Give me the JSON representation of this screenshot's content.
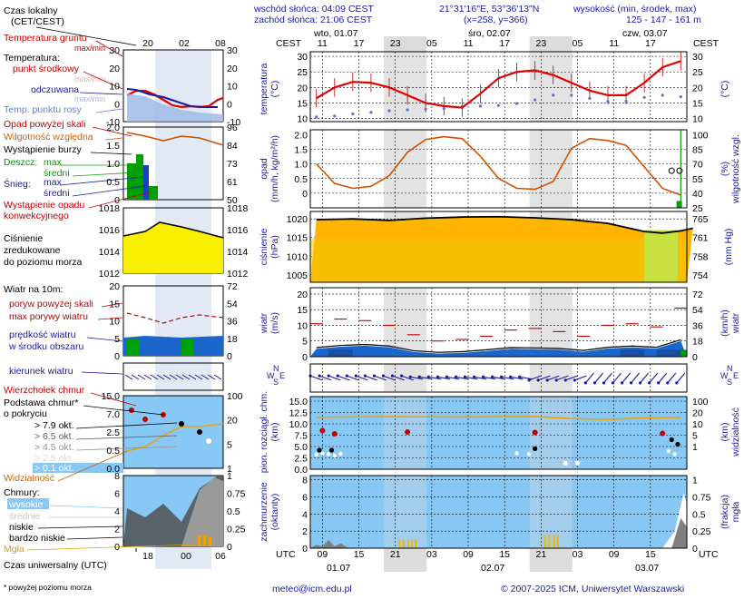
{
  "header": {
    "sunrise": "wschód słońca: 04:09 CEST",
    "sunset": "zachód słońca: 21:06 CEST",
    "coords": "21°31'16\"E, 53°36'13\"N",
    "grid": "(x=258, y=366)",
    "elevation_label": "wysokość (min, środek, max)",
    "elevation_values": "125 - 147 - 161 m"
  },
  "legend": {
    "local_time": "Czas lokalny",
    "local_time_zone": "(CET/CEST)",
    "ground_temp": "Temperatura gruntu",
    "ground_temp_sub": "max/min",
    "temperature": "Temperatura:",
    "temp_mid": "punkt środkowy",
    "temp_maxmin": "max/min",
    "felt": "odczuwana",
    "felt_maxmin": "max/min",
    "dew_point": "Temp. punktu rosy",
    "precip_above": "Opad powyżej skali",
    "humidity": "Wilgotność względna",
    "storm": "Wystąpienie burzy",
    "rain": "Deszcz:",
    "rain_max": "max",
    "rain_mean": "średni",
    "snow": "Śnieg:",
    "snow_max": "max",
    "snow_mean": "średni",
    "convective": "Wystąpienie opadu",
    "convective_2": "konwekcyjnego",
    "pressure_1": "Ciśnienie",
    "pressure_2": "zredukowane",
    "pressure_3": "do poziomu morza",
    "wind_10m": "Wiatr na 10m:",
    "gust_above": "poryw powyżej skali",
    "gust_max": "max porywy wiatru",
    "wind_speed": "prędkość wiatru",
    "wind_speed_2": "w środku obszaru",
    "wind_dir": "kierunek wiatru",
    "cloud_top": "Wierzchołek chmur",
    "cloud_base": "Podstawa chmur*",
    "cloud_base_2": "o pokryciu",
    "okt_79": "> 7.9 okt.",
    "okt_65": "> 6.5 okt.",
    "okt_45": "> 4.5 okt.",
    "okt_25": "> 2.5 okt.",
    "okt_01": "> 0.1 okt.",
    "visibility": "Widzialność",
    "clouds": "Chmury:",
    "high": "wysokie",
    "mid": "średnie",
    "low": "niskie",
    "very_low": "bardzo niskie",
    "fog": "Mgła",
    "utc": "Czas uniwersalny (UTC)",
    "footnote": "* powyżej poziomu morza"
  },
  "legend_time": {
    "local_ticks": [
      "20",
      "02",
      "08"
    ],
    "utc_ticks": [
      "18",
      "00",
      "06"
    ]
  },
  "main": {
    "cest": "CEST",
    "utc": "UTC",
    "days": [
      "wto, 01.07",
      "śro, 02.07",
      "czw, 03.07"
    ],
    "utc_days": [
      "01.07",
      "02.07",
      "03.07"
    ],
    "cest_hours": [
      "11",
      "17",
      "23",
      "05",
      "11",
      "17",
      "23",
      "05",
      "11",
      "17"
    ],
    "utc_hours": [
      "09",
      "15",
      "21",
      "03",
      "09",
      "15",
      "21",
      "03",
      "09",
      "15"
    ]
  },
  "axis_titles": {
    "temp_left": "temperatura",
    "temp_left_unit": "(°C)",
    "temp_right": "(°C)",
    "precip_left": "opad",
    "precip_left_unit": "(mm/h, kg/m²/h)",
    "precip_right": "wilgotność wzgl.",
    "precip_right_unit": "(%)",
    "pres_left": "ciśnienie",
    "pres_left_unit": "(hPa)",
    "pres_right": "(mm Hg)",
    "wind_left": "wiatr",
    "wind_left_unit": "(m/s)",
    "wind_right": "wiatr",
    "wind_right_unit": "(km/h)",
    "dir_n": "N",
    "dir_w": "W",
    "dir_s": "S",
    "dir_e": "E",
    "cloud_left": "pion. rozciągł. chm.",
    "cloud_left_unit": "(km)",
    "cloud_right": "widzialność",
    "cloud_right_unit": "(km)",
    "cover_left": "zachmurzenie",
    "cover_left_unit": "(oktanty)",
    "cover_right": "mgła",
    "cover_right_unit": "(frakcja)"
  },
  "ticks": {
    "temp_left": [
      "30",
      "25",
      "20",
      "15",
      "10"
    ],
    "temp_right": [
      "30",
      "25",
      "20",
      "15",
      "10"
    ],
    "precip_left": [
      "2.0",
      "1.5",
      "1.0",
      "0.5",
      "0"
    ],
    "precip_right": [
      "100",
      "85",
      "70",
      "55",
      "40",
      "25"
    ],
    "pres_left": [
      "1020",
      "1015",
      "1010",
      "1005"
    ],
    "pres_right": [
      "765",
      "761",
      "758",
      "754"
    ],
    "wind_left": [
      "20",
      "15",
      "10",
      "5",
      "0"
    ],
    "wind_right": [
      "72",
      "54",
      "36",
      "18",
      "0"
    ],
    "cloud_left": [
      "15.0",
      "12.5",
      "10.0",
      "7.5",
      "5.0",
      "2.5",
      "0.0"
    ],
    "cloud_right": [
      "100",
      "20",
      "10",
      "5",
      "1"
    ],
    "cover_left": [
      "8",
      "6",
      "4",
      "2",
      "0"
    ],
    "cover_right": [
      "1",
      "0.75",
      "0.5",
      "0.25",
      "0"
    ],
    "leg_temp_left": [
      "30",
      "20",
      "10",
      "0",
      "-10"
    ],
    "leg_temp_right": [
      "30",
      "20",
      "10",
      "0",
      "-10"
    ],
    "leg_precip_left": [
      "2.0",
      "1.5",
      "1.0",
      "0.5",
      "0"
    ],
    "leg_precip_right": [
      "96",
      "84",
      "73",
      "61",
      "50"
    ],
    "leg_pres_left": [
      "1018",
      "1016",
      "1014",
      "1012"
    ],
    "leg_pres_right": [
      "1018",
      "1016",
      "1014",
      "1012"
    ],
    "leg_wind_left": [
      "20",
      "15",
      "10",
      "5",
      "0"
    ],
    "leg_wind_right": [
      "72",
      "54",
      "36",
      "18",
      "0"
    ],
    "leg_cloud_left": [
      "15.0",
      "7.0",
      "2.5",
      "0.5",
      "0.0"
    ],
    "leg_cloud_right": [
      "100",
      "20",
      "5",
      "1"
    ],
    "leg_cover_left": [
      "8",
      "6",
      "4",
      "2",
      "0"
    ],
    "leg_cover_right": [
      "1",
      "0.75",
      "0.5",
      "0.25",
      "0"
    ]
  },
  "footer": {
    "email": "meteo@icm.edu.pl",
    "copyright": "© 2007-2025 ICM, Uniwersytet Warszawski"
  },
  "colors": {
    "night": "#dcdcdc",
    "sky": "#88c8f4",
    "temp": "#e00000",
    "dew": "#2020c0",
    "humidity": "#d05000",
    "pressure": "#ffcc00",
    "wind": "#1a66cc",
    "rain": "#00a000"
  },
  "chart_data": [
    {
      "type": "line",
      "name": "temperature",
      "x_hours": [
        8,
        11,
        14,
        17,
        20,
        23,
        26,
        29,
        32,
        35,
        38,
        41,
        44,
        47,
        50,
        53,
        56,
        59,
        62,
        65,
        68
      ],
      "series": [
        {
          "name": "temperatura",
          "values": [
            16.5,
            20,
            21.8,
            21.5,
            20,
            17.5,
            15,
            14,
            13.5,
            18,
            23,
            25,
            25.5,
            24,
            21.5,
            19,
            17.5,
            17.5,
            21.5,
            26.5,
            28.5
          ]
        },
        {
          "name": "temp. punktu rosy",
          "values": [
            10.5,
            10.8,
            11.5,
            12,
            12.5,
            12.8,
            13,
            13.2,
            13.8,
            14,
            14.2,
            14.8,
            16,
            17.5,
            17.5,
            16.5,
            15.5,
            15.5,
            16.8,
            17.5,
            17
          ]
        }
      ],
      "ylim": [
        10,
        30
      ]
    },
    {
      "type": "line",
      "name": "humidity",
      "x_hours": [
        8,
        11,
        14,
        17,
        20,
        23,
        26,
        29,
        32,
        35,
        38,
        41,
        44,
        47,
        50,
        53,
        56,
        59,
        62,
        65,
        68
      ],
      "values": [
        70,
        50,
        45,
        47,
        58,
        82,
        95,
        98,
        96,
        78,
        55,
        45,
        44,
        52,
        86,
        96,
        94,
        89,
        67,
        45,
        38
      ],
      "ylim": [
        25,
        100
      ]
    },
    {
      "type": "area",
      "name": "pressure",
      "x_hours": [
        8,
        14,
        20,
        26,
        32,
        38,
        44,
        50,
        56,
        62,
        65,
        68,
        70
      ],
      "values": [
        1019.8,
        1020.0,
        1019.6,
        1020.2,
        1020.5,
        1020.6,
        1020.3,
        1019.8,
        1018.8,
        1016.6,
        1016.2,
        1016.8,
        1017.5
      ],
      "ylim": [
        1003,
        1022
      ]
    },
    {
      "type": "area",
      "name": "wind",
      "x_hours": [
        8,
        12,
        16,
        20,
        24,
        28,
        32,
        36,
        40,
        44,
        48,
        52,
        56,
        60,
        64,
        68
      ],
      "series": [
        {
          "name": "prędkość wiatru",
          "values": [
            2.5,
            3.2,
            3.5,
            3.0,
            1.5,
            1.0,
            1.2,
            1.8,
            2.5,
            2.4,
            2.2,
            1.6,
            2.6,
            3.0,
            2.6,
            5.0
          ]
        },
        {
          "name": "max porywy wiatru",
          "values": [
            10.5,
            12.0,
            11.5,
            10.0,
            7.0,
            5.0,
            5.5,
            6.5,
            8.5,
            9.0,
            8.0,
            6.5,
            10.0,
            10.5,
            9.5,
            15.5
          ]
        }
      ],
      "ylim": [
        0,
        20
      ]
    },
    {
      "type": "line",
      "name": "visibility",
      "x_hours": [
        8,
        14,
        20,
        26,
        32,
        38,
        44,
        50,
        56,
        62,
        68
      ],
      "values": [
        20,
        25,
        26,
        25,
        24,
        26,
        27,
        12,
        5,
        18,
        20
      ],
      "ylim": [
        0,
        100
      ]
    },
    {
      "type": "area",
      "name": "cloud_cover",
      "x_hours": [
        8,
        9,
        10,
        11,
        12,
        13,
        14,
        15
      ],
      "values": [
        0.4,
        0.2,
        1.0,
        0.2,
        0.6,
        0.1,
        0,
        0
      ],
      "ylim": [
        0,
        8
      ]
    }
  ]
}
